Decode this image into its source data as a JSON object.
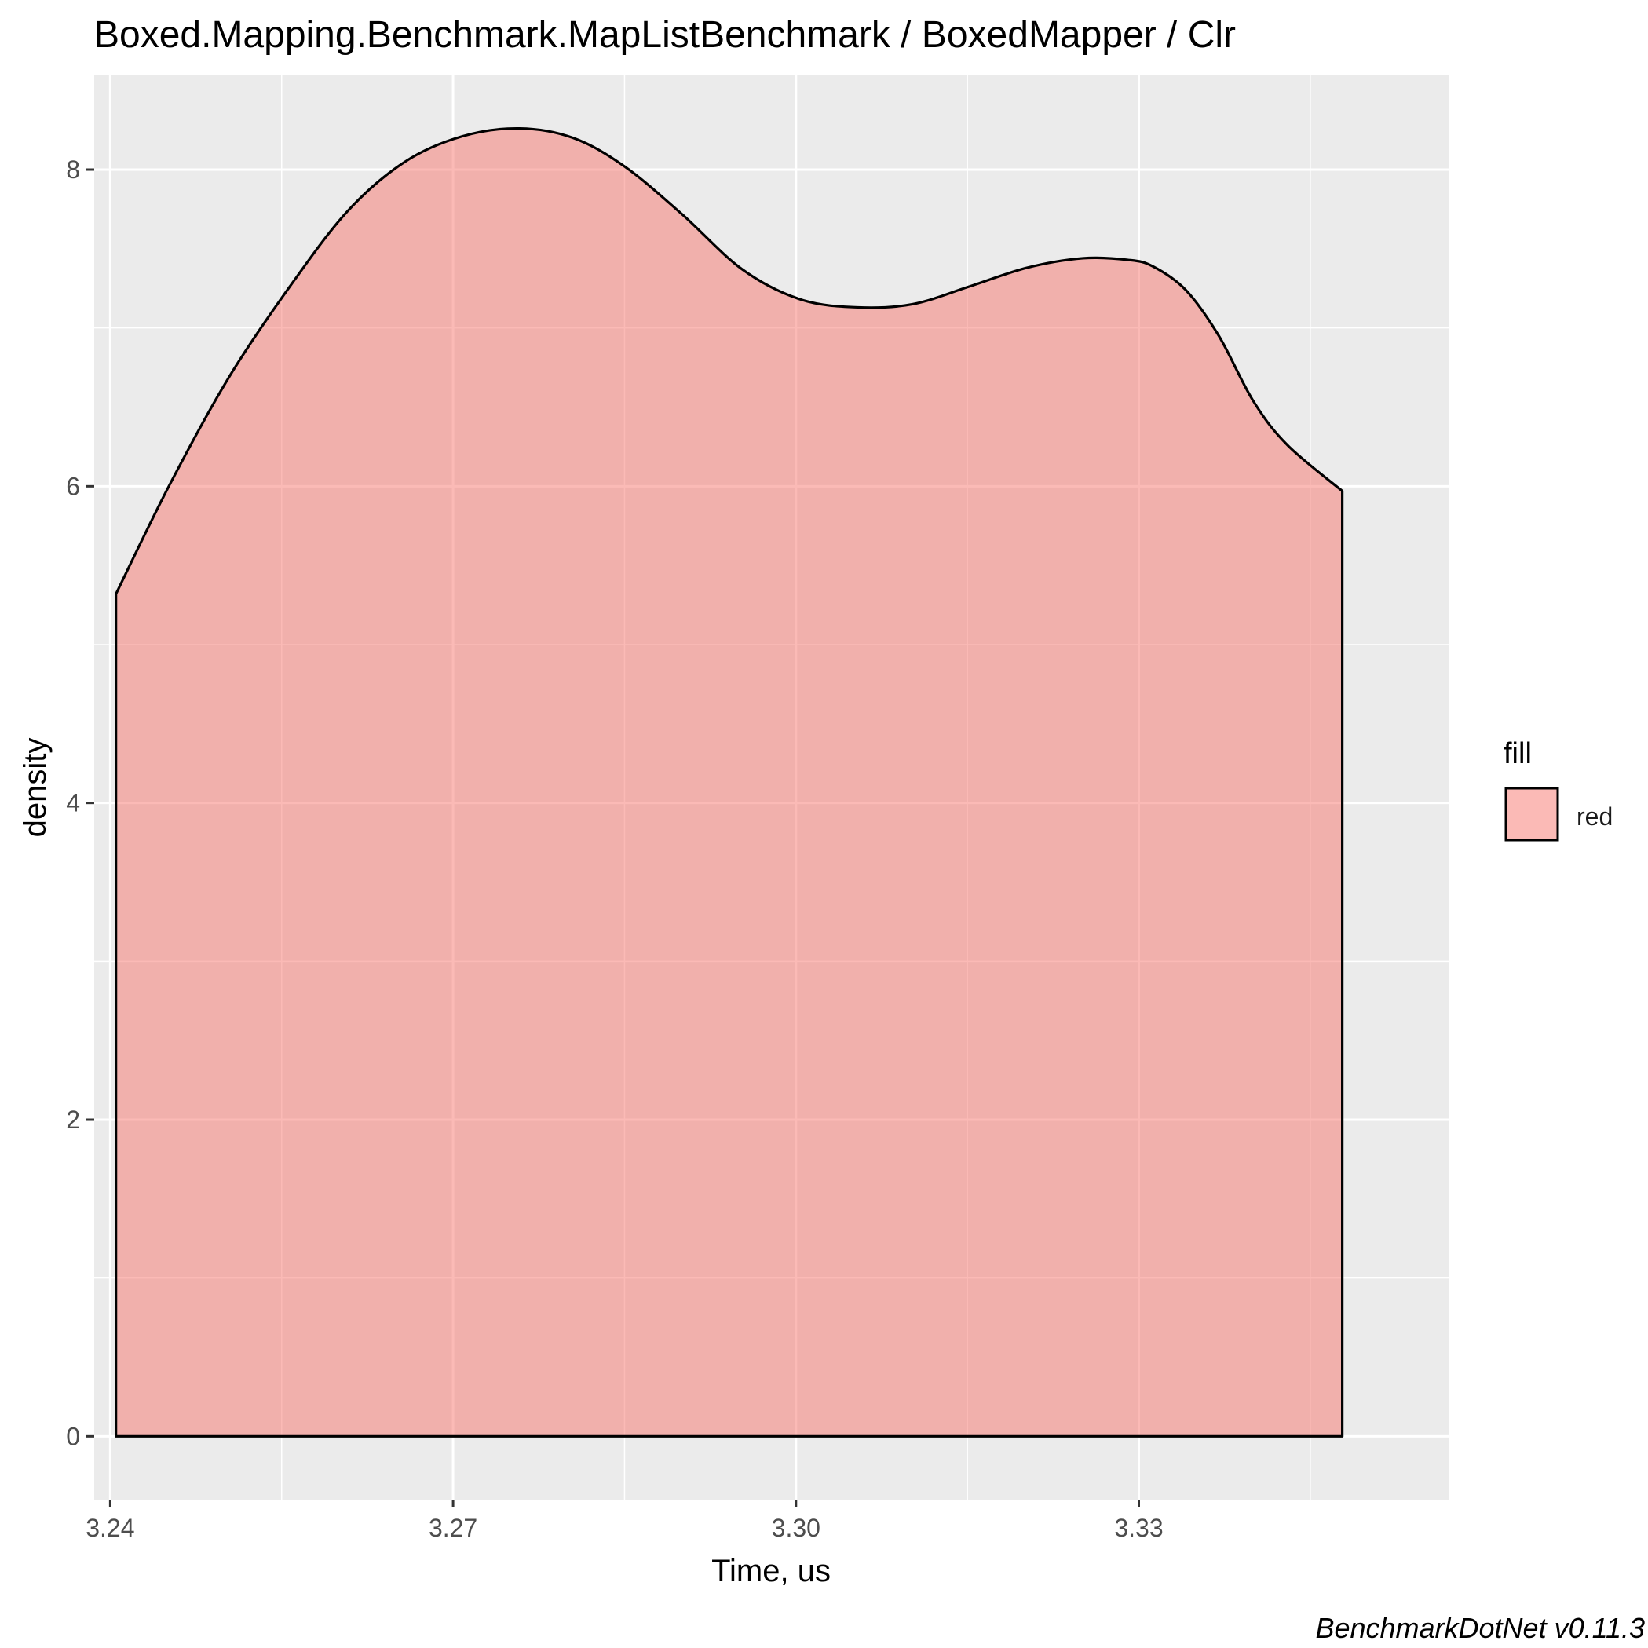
{
  "chart_data": {
    "type": "area",
    "title": "Boxed.Mapping.Benchmark.MapListBenchmark / BoxedMapper / Clr",
    "xlabel": "Time, us",
    "ylabel": "density",
    "xlim": [
      3.2386,
      3.3571
    ],
    "ylim": [
      -0.4,
      8.6
    ],
    "x_ticks": [
      3.24,
      3.27,
      3.3,
      3.33
    ],
    "x_tick_labels": [
      "3.24",
      "3.27",
      "3.30",
      "3.33"
    ],
    "x_minor_ticks": [
      3.255,
      3.285,
      3.315,
      3.345
    ],
    "y_ticks": [
      0,
      2,
      4,
      6,
      8
    ],
    "y_tick_labels": [
      "0",
      "2",
      "4",
      "6",
      "8"
    ],
    "y_minor_ticks": [
      1,
      3,
      5,
      7
    ],
    "grid": true,
    "legend": {
      "title": "fill",
      "entries": [
        "red"
      ],
      "placement": "right"
    },
    "series": [
      {
        "name": "red",
        "fill": "#F8766D",
        "fill_opacity": 0.5,
        "stroke": "#000000",
        "x": [
          3.2405,
          3.2452,
          3.2504,
          3.2557,
          3.2608,
          3.2658,
          3.2708,
          3.2758,
          3.2805,
          3.285,
          3.29,
          3.2953,
          3.3004,
          3.3054,
          3.3102,
          3.3151,
          3.3202,
          3.3251,
          3.329,
          3.3312,
          3.3341,
          3.337,
          3.34,
          3.343,
          3.3478
        ],
        "y": [
          5.32,
          6.01,
          6.69,
          7.26,
          7.74,
          8.05,
          8.21,
          8.26,
          8.2,
          8.02,
          7.72,
          7.37,
          7.18,
          7.13,
          7.15,
          7.26,
          7.38,
          7.44,
          7.43,
          7.39,
          7.24,
          6.95,
          6.54,
          6.26,
          5.97
        ]
      }
    ]
  },
  "watermark": "BenchmarkDotNet v0.11.3"
}
